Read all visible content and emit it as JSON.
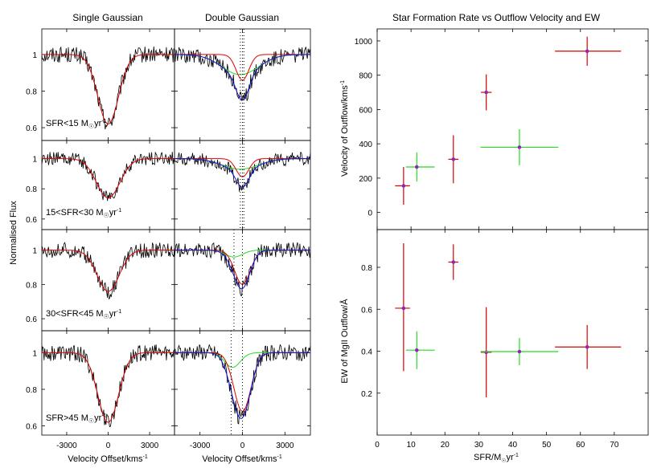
{
  "chart_data": [
    {
      "type": "line",
      "title_single": "Single Gaussian",
      "title_double": "Double Gaussian",
      "xlabel": "Velocity Offset/kms",
      "xlabel_sup": "-1",
      "ylabel": "Normalised Flux",
      "xlim": [
        -4800,
        4800
      ],
      "xticks": [
        -3000,
        0,
        3000
      ],
      "xtick_labels": [
        "-3000",
        "0",
        "3000"
      ],
      "panels": [
        {
          "label": "SFR<15 M",
          "label_sub": "☉",
          "label_tail": "yr",
          "label_sup": "-1",
          "ylim": [
            0.53,
            1.14
          ],
          "yticks": [
            0.6,
            0.8,
            1
          ],
          "ytick_labels": [
            "0.6",
            "0.8",
            "1"
          ],
          "single_depth": 0.38,
          "single_sigma": 750,
          "double_broad_depth": 0.11,
          "double_narrow_depth": 0.14,
          "double_sigma_broad": 1300,
          "double_sigma_narrow": 450,
          "double_broad_center": -150,
          "dotted_lines": [
            -150,
            0,
            100
          ]
        },
        {
          "label": "15<SFR<30 M",
          "label_sub": "☉",
          "label_tail": "yr",
          "label_sup": "-1",
          "ylim": [
            0.53,
            1.12
          ],
          "yticks": [
            0.6,
            0.8,
            1
          ],
          "ytick_labels": [
            "0.6",
            "0.8",
            "1"
          ],
          "single_depth": 0.26,
          "single_sigma": 850,
          "double_broad_depth": 0.07,
          "double_narrow_depth": 0.12,
          "double_sigma_broad": 1300,
          "double_sigma_narrow": 450,
          "double_broad_center": -150,
          "dotted_lines": [
            -150,
            0,
            100
          ]
        },
        {
          "label": "30<SFR<45 M",
          "label_sub": "☉",
          "label_tail": "yr",
          "label_sup": "-1",
          "ylim": [
            0.53,
            1.12
          ],
          "yticks": [
            0.6,
            0.8,
            1
          ],
          "ytick_labels": [
            "0.6",
            "0.8",
            "1"
          ],
          "single_depth": 0.24,
          "single_sigma": 800,
          "double_broad_depth": 0.04,
          "double_narrow_depth": 0.2,
          "double_sigma_broad": 600,
          "double_sigma_narrow": 550,
          "double_broad_center": -600,
          "dotted_lines": [
            -600,
            0
          ]
        },
        {
          "label": "SFR>45 M",
          "label_sub": "☉",
          "label_tail": "yr",
          "label_sup": "-1",
          "ylim": [
            0.55,
            1.12
          ],
          "yticks": [
            0.6,
            0.8,
            1
          ],
          "ytick_labels": [
            "0.6",
            "0.8",
            "1"
          ],
          "single_depth": 0.38,
          "single_sigma": 750,
          "double_broad_depth": 0.08,
          "double_narrow_depth": 0.32,
          "double_sigma_broad": 550,
          "double_sigma_narrow": 600,
          "double_broad_center": -700,
          "dotted_lines": [
            -800,
            0
          ]
        }
      ]
    },
    {
      "type": "scatter",
      "title": "Star Formation Rate vs Outflow Velocity and EW",
      "xlabel": "SFR/M",
      "xlabel_sub": "☉",
      "xlabel_tail": "yr",
      "xlabel_sup": "-1",
      "xlim": [
        0,
        80
      ],
      "xticks": [
        0,
        10,
        20,
        30,
        40,
        50,
        60,
        70
      ],
      "xtick_labels": [
        "0",
        "10",
        "20",
        "30",
        "40",
        "50",
        "60",
        "70"
      ],
      "top": {
        "ylabel": "Velocity of Outflow/kms",
        "ylabel_sup": "-1",
        "ylim": [
          -100,
          1070
        ],
        "yticks": [
          0,
          200,
          400,
          600,
          800,
          1000
        ],
        "ytick_labels": [
          "0",
          "200",
          "400",
          "600",
          "800",
          "1000"
        ],
        "series": [
          {
            "name": "red",
            "color": "#dd0000",
            "points": [
              {
                "x": 7.8,
                "y": 155,
                "xerr": [
                  2.5,
                  1.9
                ],
                "yerr": [
                  110,
                  110
                ]
              },
              {
                "x": 22.5,
                "y": 310,
                "xerr": [
                  1.5,
                  1.5
                ],
                "yerr": [
                  140,
                  140
                ]
              },
              {
                "x": 32.2,
                "y": 700,
                "xerr": [
                  1.6,
                  1.6
                ],
                "yerr": [
                  105,
                  105
                ]
              },
              {
                "x": 62,
                "y": 940,
                "xerr": [
                  9.5,
                  10
                ],
                "yerr": [
                  85,
                  85
                ]
              }
            ]
          },
          {
            "name": "green",
            "color": "#22dd22",
            "points": [
              {
                "x": 11.7,
                "y": 265,
                "xerr": [
                  3.2,
                  5.3
                ],
                "yerr": [
                  85,
                  85
                ]
              },
              {
                "x": 42,
                "y": 380,
                "xerr": [
                  11.5,
                  11.5
                ],
                "yerr": [
                  105,
                  105
                ]
              }
            ]
          }
        ]
      },
      "bottom": {
        "ylabel": "EW of MgII Outflow/Å",
        "ylim": [
          0,
          0.98
        ],
        "yticks": [
          0.2,
          0.4,
          0.6,
          0.8
        ],
        "ytick_labels": [
          "0.2",
          "0.4",
          "0.6",
          "0.8"
        ],
        "series": [
          {
            "name": "red",
            "color": "#dd0000",
            "points": [
              {
                "x": 7.8,
                "y": 0.605,
                "xerr": [
                  2.5,
                  1.9
                ],
                "yerr": [
                  0.3,
                  0.31
                ]
              },
              {
                "x": 22.5,
                "y": 0.825,
                "xerr": [
                  1.5,
                  1.5
                ],
                "yerr": [
                  0.085,
                  0.085
                ]
              },
              {
                "x": 32.2,
                "y": 0.395,
                "xerr": [
                  1.6,
                  1.6
                ],
                "yerr": [
                  0.215,
                  0.215
                ]
              },
              {
                "x": 62,
                "y": 0.42,
                "xerr": [
                  9.5,
                  10
                ],
                "yerr": [
                  0.105,
                  0.105
                ]
              }
            ]
          },
          {
            "name": "green",
            "color": "#22dd22",
            "points": [
              {
                "x": 11.7,
                "y": 0.405,
                "xerr": [
                  3.2,
                  5.3
                ],
                "yerr": [
                  0.09,
                  0.09
                ]
              },
              {
                "x": 42,
                "y": 0.398,
                "xerr": [
                  11.5,
                  11.5
                ],
                "yerr": [
                  0.065,
                  0.065
                ]
              }
            ]
          }
        ]
      }
    }
  ]
}
